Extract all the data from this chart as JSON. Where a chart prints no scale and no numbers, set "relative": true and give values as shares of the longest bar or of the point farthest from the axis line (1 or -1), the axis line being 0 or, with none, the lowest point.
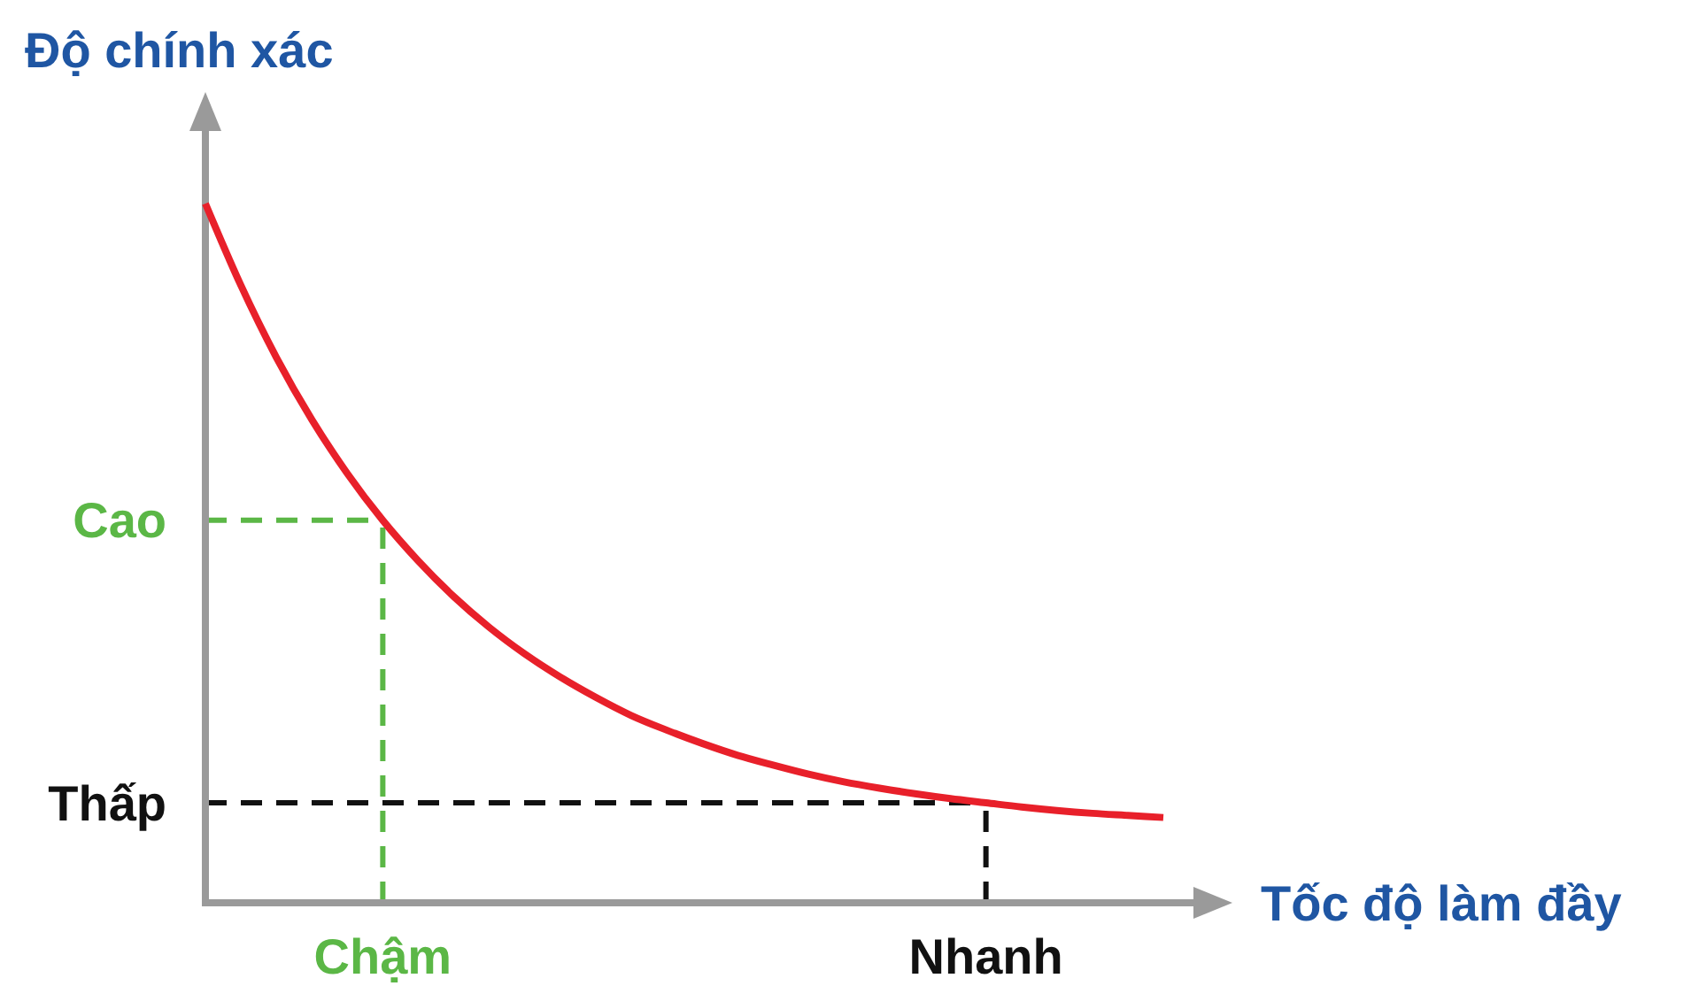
{
  "chart_data": {
    "type": "line",
    "relative": true,
    "ylabel": "Độ chính xác",
    "xlabel": "Tốc độ làm đầy",
    "categories": [
      null,
      null,
      null,
      null,
      null,
      "Chậm",
      null,
      null,
      null,
      null,
      null,
      null,
      null,
      null,
      null,
      null,
      null,
      null,
      null,
      null,
      null,
      null,
      "Nhanh",
      null,
      null,
      null,
      null,
      null
    ],
    "series": [
      {
        "color": "#e8202a",
        "values": [
          1.0,
          0.883,
          0.78,
          0.691,
          0.614,
          0.547,
          0.489,
          0.438,
          0.394,
          0.356,
          0.323,
          0.294,
          0.268,
          0.247,
          0.228,
          0.211,
          0.197,
          0.184,
          0.173,
          0.164,
          0.156,
          0.149,
          0.143,
          0.137,
          0.132,
          0.128,
          0.125,
          0.122
        ]
      }
    ],
    "ref_lines": [
      {
        "axis": "y",
        "value": 0.547,
        "label": "Cao",
        "color": "#5bb746",
        "line_style": "dashed"
      },
      {
        "axis": "y",
        "value": 0.143,
        "label": "Thấp",
        "color": "#111111",
        "line_style": "dashed"
      },
      {
        "axis": "x",
        "value": "Chậm",
        "color": "#5bb746",
        "line_style": "dashed"
      },
      {
        "axis": "x",
        "value": "Nhanh",
        "color": "#111111",
        "line_style": "dashed"
      }
    ],
    "marker": "none",
    "line_style": "solid"
  }
}
